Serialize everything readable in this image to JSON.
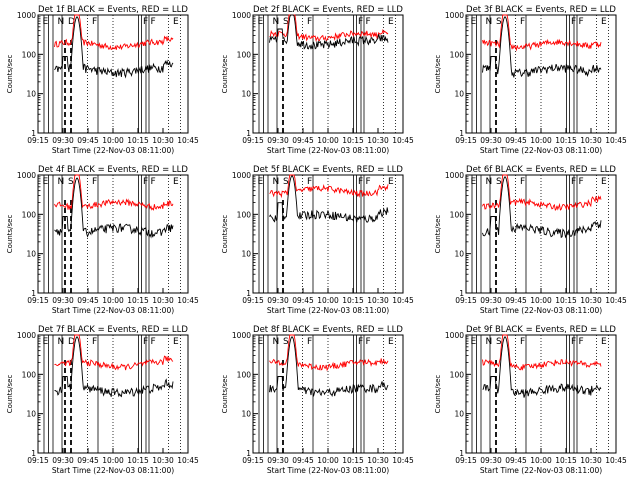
{
  "chart_data": {
    "type": "line",
    "ylabel": "Counts/sec",
    "xlabel": "Start Time (22-Nov-03 08:11:00)",
    "y_scale": "log",
    "ylim": [
      1,
      1000
    ],
    "y_tick_labels": [
      "1",
      "10",
      "100",
      "1000"
    ],
    "x_tick_labels": [
      "09:15",
      "09:30",
      "09:45",
      "10:00",
      "10:15",
      "10:30",
      "10:45"
    ],
    "series_colors": {
      "events": "#000000",
      "lld": "#ff0000"
    },
    "panels": [
      {
        "title": "Det 1f BLACK = Events, RED = LLD",
        "letters": [
          "E",
          "N",
          "D",
          "F",
          "F",
          "F",
          "E"
        ],
        "peak": 1500,
        "spike": true,
        "dashed": 2
      },
      {
        "title": "Det 2f BLACK = Events, RED = LLD",
        "letters": [
          "E",
          "N",
          "S",
          "F",
          "F",
          "F",
          "E"
        ],
        "peak": 2200,
        "spike": true,
        "dashed": 1
      },
      {
        "title": "Det 3f BLACK = Events, RED = LLD",
        "letters": [
          "E",
          "N",
          "S",
          "F",
          "F",
          "F",
          "E"
        ],
        "peak": 1500,
        "spike": true,
        "dashed": 1
      },
      {
        "title": "Det 4f BLACK = Events, RED = LLD",
        "letters": [
          "E",
          "N",
          "S",
          "F",
          "F",
          "F",
          "E"
        ],
        "peak": 1400,
        "spike": true,
        "dashed": 2
      },
      {
        "title": "Det 5f BLACK = Events, RED = LLD",
        "letters": [
          "E",
          "N",
          "S",
          "F",
          "F",
          "F",
          "E"
        ],
        "peak": 1600,
        "spike": true,
        "dashed": 1
      },
      {
        "title": "Det 6f BLACK = Events, RED = LLD",
        "letters": [
          "E",
          "N",
          "S",
          "F",
          "F",
          "F",
          "E"
        ],
        "peak": 1500,
        "spike": true,
        "dashed": 1
      },
      {
        "title": "Det 7f BLACK = Events, RED = LLD",
        "letters": [
          "E",
          "N",
          "D",
          "F",
          "F",
          "F",
          "E"
        ],
        "peak": 1500,
        "spike": true,
        "dashed": 2
      },
      {
        "title": "Det 8f BLACK = Events, RED = LLD",
        "letters": [
          "E",
          "N",
          "S",
          "F",
          "F",
          "F",
          "E"
        ],
        "peak": 1500,
        "spike": true,
        "dashed": 1
      },
      {
        "title": "Det 9f BLACK = Events, RED = LLD",
        "letters": [
          "E",
          "N",
          "S",
          "F",
          "F",
          "F",
          "E"
        ],
        "peak": 1500,
        "spike": true,
        "dashed": 1
      }
    ]
  }
}
